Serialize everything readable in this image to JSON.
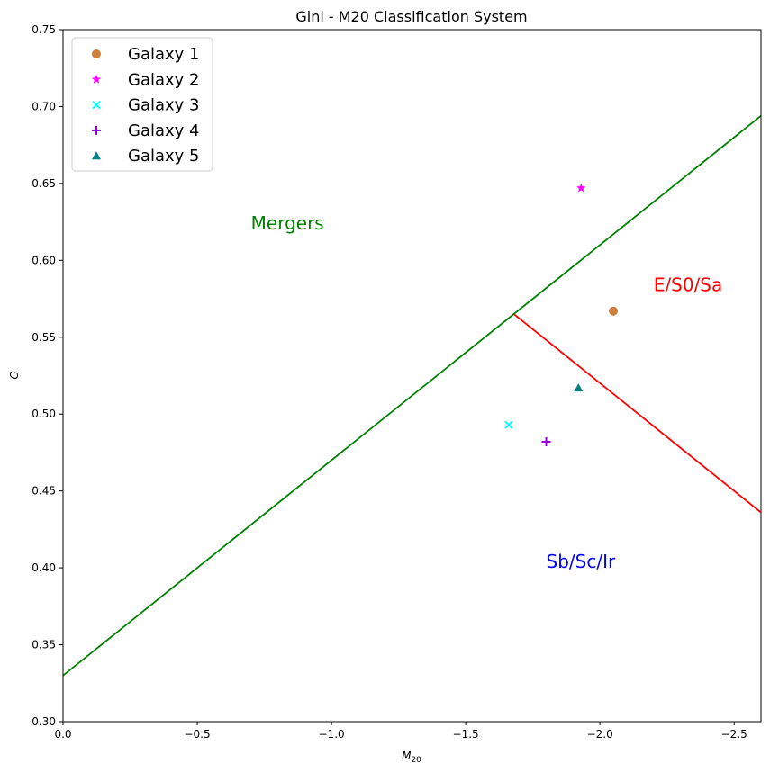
{
  "chart_data": {
    "type": "scatter",
    "title": "Gini - M20 Classification System",
    "xlabel": "M",
    "xlabel_sub": "20",
    "ylabel": "G",
    "xlim": [
      0,
      -2.6
    ],
    "ylim": [
      0.3,
      0.75
    ],
    "x_reversed": true,
    "grid": false,
    "legend_placement": "upper-left",
    "x_ticks": [
      {
        "value": 0,
        "label": "0.0"
      },
      {
        "value": -0.5,
        "label": "−0.5"
      },
      {
        "value": -1.0,
        "label": "−1.0"
      },
      {
        "value": -1.5,
        "label": "−1.5"
      },
      {
        "value": -2.0,
        "label": "−2.0"
      },
      {
        "value": -2.5,
        "label": "−2.5"
      }
    ],
    "y_ticks": [
      {
        "value": 0.3,
        "label": "0.30"
      },
      {
        "value": 0.35,
        "label": "0.35"
      },
      {
        "value": 0.4,
        "label": "0.40"
      },
      {
        "value": 0.45,
        "label": "0.45"
      },
      {
        "value": 0.5,
        "label": "0.50"
      },
      {
        "value": 0.55,
        "label": "0.55"
      },
      {
        "value": 0.6,
        "label": "0.60"
      },
      {
        "value": 0.65,
        "label": "0.65"
      },
      {
        "value": 0.7,
        "label": "0.70"
      },
      {
        "value": 0.75,
        "label": "0.75"
      }
    ],
    "lines": [
      {
        "name": "mergers-boundary",
        "color": "#008000",
        "points": [
          [
            0,
            0.33
          ],
          [
            -2.6,
            0.694
          ]
        ]
      },
      {
        "name": "early-late-boundary",
        "color": "#ff0000",
        "points": [
          [
            -1.68,
            0.565
          ],
          [
            -2.6,
            0.436
          ]
        ]
      }
    ],
    "series": [
      {
        "name": "Galaxy 1",
        "marker": "circle",
        "color": "#cd7f3c",
        "points": [
          [
            -2.05,
            0.567
          ]
        ]
      },
      {
        "name": "Galaxy 2",
        "marker": "star",
        "color": "#ff00ff",
        "points": [
          [
            -1.93,
            0.647
          ]
        ]
      },
      {
        "name": "Galaxy 3",
        "marker": "x",
        "color": "#00ffff",
        "points": [
          [
            -1.66,
            0.493
          ]
        ]
      },
      {
        "name": "Galaxy 4",
        "marker": "plus",
        "color": "#9400d3",
        "points": [
          [
            -1.8,
            0.482
          ]
        ]
      },
      {
        "name": "Galaxy 5",
        "marker": "triangle",
        "color": "#008080",
        "points": [
          [
            -1.92,
            0.517
          ]
        ]
      }
    ],
    "annotations": [
      {
        "text": "Mergers",
        "x": -0.7,
        "y": 0.62,
        "color": "#008000"
      },
      {
        "text": "E/S0/Sa",
        "x": -2.2,
        "y": 0.58,
        "color": "#ff0000"
      },
      {
        "text": "Sb/Sc/Ir",
        "x": -1.8,
        "y": 0.4,
        "color": "#0000ff"
      }
    ]
  }
}
